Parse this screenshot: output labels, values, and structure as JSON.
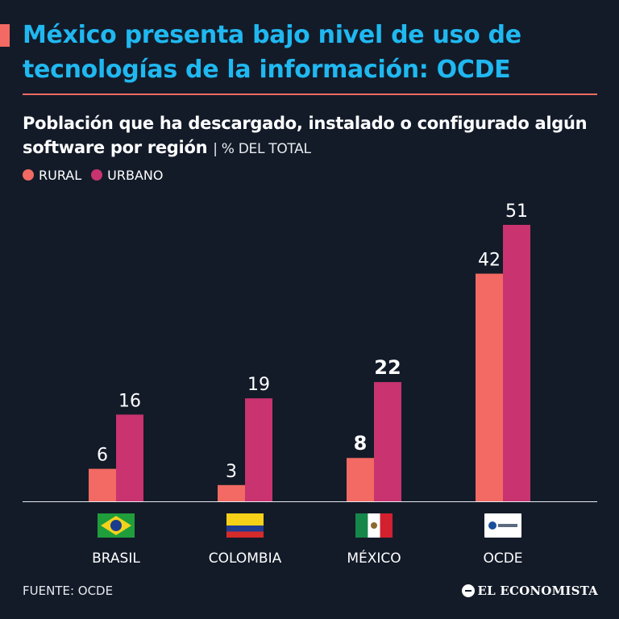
{
  "header": {
    "title": "México presenta bajo nivel de uso de tecnologías de la información: OCDE",
    "subtitle": "Población que ha descargado, instalado o configurado algún software por región",
    "unit": "| % DEL TOTAL"
  },
  "colors": {
    "rural": "#f26a63",
    "urbano": "#c9336f",
    "title": "#20b8f0",
    "background": "#131b29"
  },
  "chart_data": {
    "type": "bar",
    "categories": [
      "BRASIL",
      "COLOMBIA",
      "MÉXICO",
      "OCDE"
    ],
    "series": [
      {
        "name": "RURAL",
        "values": [
          6,
          3,
          8,
          42
        ]
      },
      {
        "name": "URBANO",
        "values": [
          16,
          19,
          22,
          51
        ]
      }
    ],
    "highlight_category": "MÉXICO",
    "flags": [
      "brazil-flag-icon",
      "colombia-flag-icon",
      "mexico-flag-icon",
      "oecd-logo-icon"
    ],
    "ylim": [
      0,
      51
    ],
    "grid": false,
    "legend": "top-left"
  },
  "footer": {
    "source": "FUENTE: OCDE",
    "brand": "EL ECONOMISTA"
  }
}
